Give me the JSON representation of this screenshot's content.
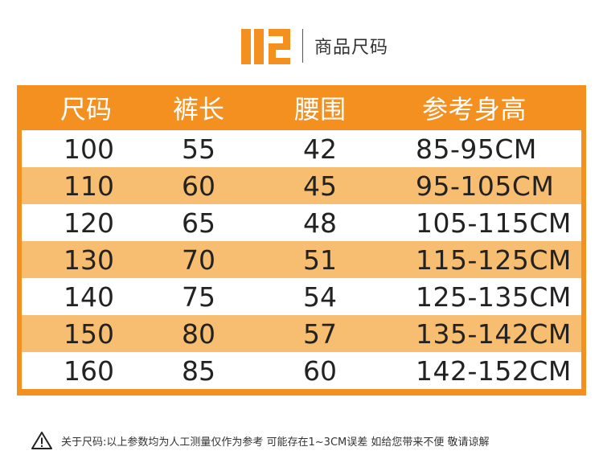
{
  "header": {
    "logo": "02",
    "title": "商品尺码"
  },
  "table": {
    "columns": [
      "尺码",
      "裤长",
      "腰围",
      "参考身高"
    ],
    "rows": [
      [
        "100",
        "55",
        "42",
        "85-95CM"
      ],
      [
        "110",
        "60",
        "45",
        "95-105CM"
      ],
      [
        "120",
        "65",
        "48",
        "105-115CM"
      ],
      [
        "130",
        "70",
        "51",
        "115-125CM"
      ],
      [
        "140",
        "75",
        "54",
        "125-135CM"
      ],
      [
        "150",
        "80",
        "57",
        "135-142CM"
      ],
      [
        "160",
        "85",
        "60",
        "142-152CM"
      ]
    ]
  },
  "note": {
    "icon": "warning-triangle-icon",
    "text": "关于尺码:以上参数均为人工测量仅作为参考 可能存在1~3CM误差 如给您带来不便 敬请谅解"
  },
  "colors": {
    "accent": "#f39020",
    "stripe": "#f7bd70"
  }
}
